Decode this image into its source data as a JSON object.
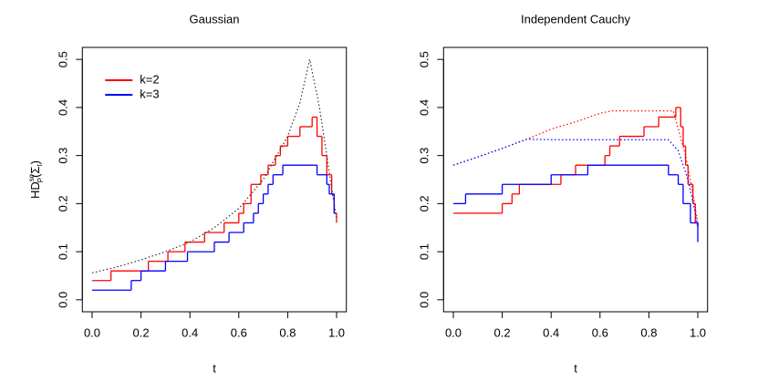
{
  "chart_data": [
    {
      "type": "line",
      "title": "Gaussian",
      "x_label": "t",
      "y_label": {
        "base": "HD",
        "sub": "P",
        "sup": "sc",
        "arg": "(Σ",
        "argsub": "t",
        "close": ")"
      },
      "xlim": [
        -0.04,
        1.04
      ],
      "ylim": [
        -0.025,
        0.525
      ],
      "xticks": [
        {
          "value": 0,
          "label": "0.0"
        },
        0.2,
        0.4,
        0.6,
        0.8,
        {
          "value": 1,
          "label": "1.0"
        }
      ],
      "yticks": [
        {
          "value": 0,
          "label": "0.0"
        },
        0.1,
        0.2,
        0.3,
        0.4,
        0.5
      ],
      "legend": "topleft",
      "series": [
        {
          "name": "k=2",
          "color": "#ff0000",
          "step": true,
          "x": [
            0,
            0.077,
            0.23,
            0.31,
            0.38,
            0.46,
            0.54,
            0.6,
            0.62,
            0.65,
            0.69,
            0.72,
            0.75,
            0.77,
            0.8,
            0.85,
            0.9,
            0.92,
            0.94,
            0.96,
            0.98,
            0.99,
            1.0
          ],
          "values": [
            0.04,
            0.06,
            0.08,
            0.1,
            0.12,
            0.14,
            0.16,
            0.18,
            0.2,
            0.24,
            0.26,
            0.28,
            0.3,
            0.32,
            0.34,
            0.36,
            0.38,
            0.34,
            0.3,
            0.26,
            0.22,
            0.18,
            0.16
          ]
        },
        {
          "name": "k=3",
          "color": "#0000ff",
          "step": true,
          "x": [
            0,
            0.16,
            0.2,
            0.3,
            0.39,
            0.5,
            0.56,
            0.62,
            0.66,
            0.68,
            0.7,
            0.72,
            0.74,
            0.78,
            0.92,
            0.96,
            0.97,
            0.99,
            1.0
          ],
          "values": [
            0.02,
            0.04,
            0.06,
            0.08,
            0.1,
            0.12,
            0.14,
            0.16,
            0.18,
            0.2,
            0.22,
            0.24,
            0.26,
            0.28,
            0.26,
            0.24,
            0.22,
            0.18,
            0.18
          ]
        },
        {
          "color": "#333333",
          "linestyle": "dotted",
          "x": [
            0,
            0.1,
            0.2,
            0.3,
            0.4,
            0.5,
            0.6,
            0.7,
            0.8,
            0.85,
            0.89,
            0.93,
            0.96,
            0.98,
            1.0
          ],
          "values": [
            0.056,
            0.068,
            0.083,
            0.1,
            0.12,
            0.15,
            0.19,
            0.25,
            0.34,
            0.41,
            0.5,
            0.4,
            0.3,
            0.23,
            0.17
          ]
        }
      ]
    },
    {
      "type": "line",
      "title": "Independent Cauchy",
      "x_label": "t",
      "xlim": [
        -0.04,
        1.04
      ],
      "ylim": [
        -0.025,
        0.525
      ],
      "xticks": [
        {
          "value": 0,
          "label": "0.0"
        },
        0.2,
        0.4,
        0.6,
        0.8,
        {
          "value": 1,
          "label": "1.0"
        }
      ],
      "yticks": [
        {
          "value": 0,
          "label": "0.0"
        },
        0.1,
        0.2,
        0.3,
        0.4,
        0.5
      ],
      "series": [
        {
          "color": "#ff0000",
          "step": true,
          "x": [
            0,
            0.2,
            0.24,
            0.27,
            0.44,
            0.5,
            0.62,
            0.64,
            0.68,
            0.78,
            0.84,
            0.91,
            0.93,
            0.94,
            0.95,
            0.96,
            0.98,
            0.99,
            1.0
          ],
          "values": [
            0.18,
            0.2,
            0.22,
            0.24,
            0.26,
            0.28,
            0.3,
            0.32,
            0.34,
            0.36,
            0.38,
            0.4,
            0.36,
            0.32,
            0.28,
            0.24,
            0.2,
            0.16,
            0.15
          ]
        },
        {
          "color": "#0000ff",
          "step": true,
          "x": [
            0,
            0.05,
            0.2,
            0.4,
            0.55,
            0.88,
            0.92,
            0.94,
            0.97,
            1.0
          ],
          "values": [
            0.2,
            0.22,
            0.24,
            0.26,
            0.28,
            0.26,
            0.24,
            0.2,
            0.16,
            0.12
          ]
        },
        {
          "color": "#ff0000",
          "linestyle": "dotted",
          "x": [
            0,
            0.1,
            0.2,
            0.3,
            0.4,
            0.5,
            0.6,
            0.65,
            0.9,
            0.95,
            0.98,
            1.0
          ],
          "values": [
            0.28,
            0.297,
            0.315,
            0.334,
            0.355,
            0.37,
            0.388,
            0.393,
            0.393,
            0.3,
            0.22,
            0.16
          ]
        },
        {
          "color": "#0000ff",
          "linestyle": "dotted",
          "x": [
            0,
            0.1,
            0.2,
            0.3,
            0.4,
            0.88,
            0.92,
            0.96,
            0.99,
            1.0
          ],
          "values": [
            0.28,
            0.297,
            0.315,
            0.334,
            0.333,
            0.333,
            0.31,
            0.25,
            0.18,
            0.15
          ]
        }
      ]
    }
  ]
}
